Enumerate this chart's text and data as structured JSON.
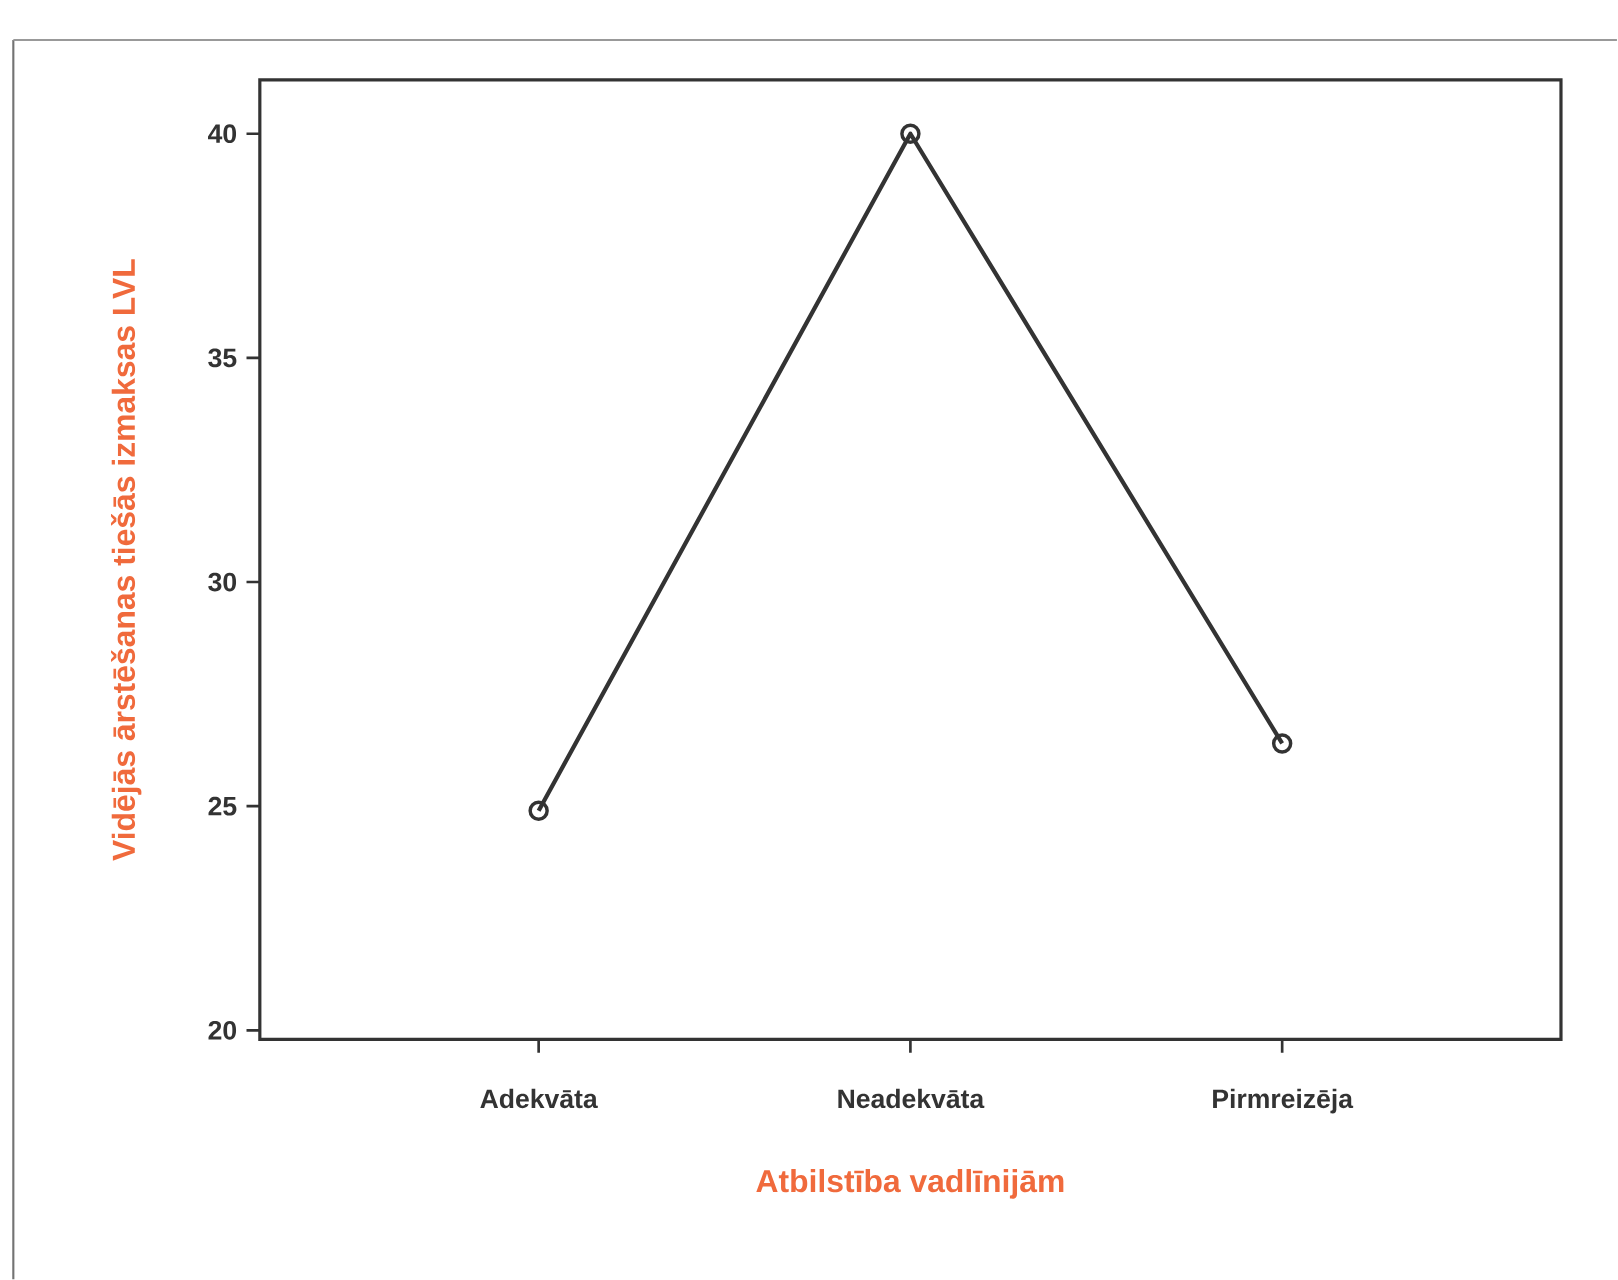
{
  "chart_data": {
    "type": "line",
    "xlabel": "Atbilstība vadlīnijām",
    "ylabel": "Vidējās ārstēšanas tiešās izmaksas LVL",
    "categories": [
      "Adekvāta",
      "Neadekvāta",
      "Pirmreizēja"
    ],
    "series": [
      {
        "color": "#333333",
        "values": [
          24.9,
          40.0,
          26.4
        ]
      }
    ],
    "ylim": [
      19.8,
      41.2
    ],
    "yticks": [
      20,
      25,
      30,
      35,
      40
    ],
    "marker": "circle",
    "line_style": "solid"
  }
}
